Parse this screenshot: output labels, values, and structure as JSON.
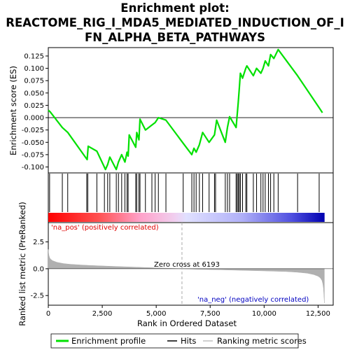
{
  "chart_data": {
    "type": "line",
    "title_lines": [
      "Enrichment plot:",
      "REACTOME_RIG_I_MDA5_MEDIATED_INDUCTION_OF_I",
      "FN_ALPHA_BETA_PATHWAYS"
    ],
    "top_panel": {
      "ylabel": "Enrichment score (ES)",
      "ylim": [
        -0.112,
        0.142
      ],
      "yticks": [
        -0.1,
        -0.075,
        -0.05,
        -0.025,
        0.0,
        0.025,
        0.05,
        0.075,
        0.1,
        0.125
      ],
      "ytick_labels": [
        "-0.100",
        "-0.075",
        "-0.050",
        "-0.025",
        "0.000",
        "0.025",
        "0.050",
        "0.075",
        "0.100",
        "0.125"
      ],
      "line_color": "#00e000",
      "series": {
        "name": "Enrichment profile",
        "x": [
          0,
          80,
          650,
          900,
          1800,
          1850,
          2250,
          2650,
          2750,
          2850,
          3150,
          3250,
          3400,
          3550,
          3650,
          3700,
          3750,
          4050,
          4100,
          4200,
          4250,
          4500,
          4800,
          4950,
          5100,
          5450,
          6250,
          6650,
          6750,
          6850,
          7000,
          7150,
          7450,
          7700,
          7800,
          8200,
          8300,
          8400,
          8700,
          8750,
          8800,
          8850,
          8900,
          9000,
          9150,
          9200,
          9500,
          9650,
          9850,
          9950,
          10050,
          10200,
          10300,
          10450,
          10650,
          11550,
          12550,
          12700
        ],
        "y": [
          0.015,
          0.012,
          -0.02,
          -0.03,
          -0.085,
          -0.058,
          -0.068,
          -0.105,
          -0.095,
          -0.08,
          -0.105,
          -0.09,
          -0.075,
          -0.09,
          -0.07,
          -0.078,
          -0.035,
          -0.06,
          -0.03,
          -0.045,
          -0.003,
          -0.025,
          -0.015,
          -0.01,
          0.0,
          -0.005,
          -0.052,
          -0.075,
          -0.062,
          -0.07,
          -0.055,
          -0.03,
          -0.05,
          -0.035,
          -0.005,
          -0.05,
          -0.02,
          0.002,
          -0.02,
          0.005,
          0.03,
          0.06,
          0.09,
          0.08,
          0.1,
          0.105,
          0.085,
          0.1,
          0.09,
          0.1,
          0.115,
          0.105,
          0.128,
          0.12,
          0.138,
          0.085,
          0.02,
          0.01
        ]
      }
    },
    "hits_panel": {
      "hits_x": [
        60,
        650,
        900,
        1780,
        1830,
        2250,
        2600,
        2750,
        2850,
        3150,
        3250,
        3400,
        3550,
        3650,
        3700,
        4050,
        4100,
        4200,
        4250,
        4500,
        4800,
        4950,
        5100,
        5450,
        6250,
        6650,
        6750,
        6850,
        7000,
        7150,
        7450,
        7700,
        7750,
        8200,
        8300,
        8400,
        8700,
        8750,
        8800,
        8850,
        8900,
        9000,
        9150,
        9200,
        9500,
        9650,
        9850,
        9950,
        10050,
        10200,
        10300,
        10450,
        10650,
        11550,
        12550
      ]
    },
    "metric_panel": {
      "ylabel": "Ranked list metric (PreRanked)",
      "ylim": [
        -3.4,
        4.3
      ],
      "yticks": [
        -2.5,
        0.0,
        2.5
      ],
      "ytick_labels": [
        "-2.5",
        "0.0",
        "2.5"
      ],
      "pos_label": "'na_pos' (positively correlated)",
      "neg_label": "'na_neg' (negatively correlated)",
      "zero_cross_label": "Zero cross at 6193",
      "zero_cross": 6193,
      "curve_x": [
        0,
        10,
        30,
        60,
        100,
        200,
        400,
        700,
        1000,
        1500,
        2000,
        3000,
        4000,
        5000,
        6193,
        7000,
        8000,
        9000,
        10000,
        11000,
        11500,
        12000,
        12300,
        12500,
        12600,
        12680,
        12720,
        12750,
        12770,
        12790
      ],
      "curve_y": [
        1.8,
        1.5,
        1.25,
        1.05,
        0.9,
        0.75,
        0.6,
        0.48,
        0.42,
        0.35,
        0.3,
        0.22,
        0.15,
        0.08,
        0.0,
        -0.06,
        -0.1,
        -0.15,
        -0.2,
        -0.26,
        -0.32,
        -0.42,
        -0.55,
        -0.7,
        -0.85,
        -1.1,
        -1.4,
        -1.8,
        -2.4,
        -3.2
      ]
    },
    "xaxis": {
      "xlabel": "Rank in Ordered Dataset",
      "xlim": [
        0,
        13200
      ],
      "xticks": [
        0,
        2500,
        5000,
        7500,
        10000,
        12500
      ],
      "xtick_labels": [
        "0",
        "2,500",
        "5,000",
        "7,500",
        "10,000",
        "12,500"
      ],
      "list_length": 12800
    },
    "legend": {
      "position": "bottom",
      "items": [
        {
          "label": "Enrichment profile",
          "color": "#00e000",
          "kind": "line"
        },
        {
          "label": "Hits",
          "color": "#000000",
          "kind": "line"
        },
        {
          "label": "Ranking metric scores",
          "color": "#c0c0c0",
          "kind": "line"
        }
      ]
    },
    "colors": {
      "pos_text": "#e00000",
      "neg_text": "#0000c0",
      "metric_fill": "#b0b0b0",
      "zero_line": "#aaaaaa"
    }
  }
}
